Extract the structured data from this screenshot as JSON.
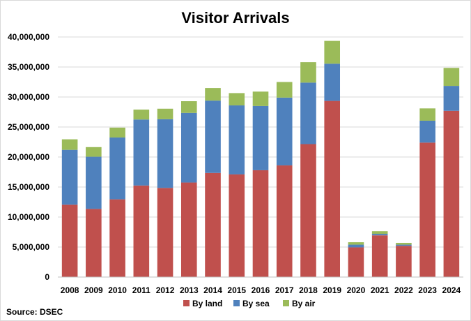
{
  "chart_data": {
    "type": "bar",
    "stacked": true,
    "title": "Visitor Arrivals",
    "source": "Source: DSEC",
    "xlabel": "",
    "ylabel": "",
    "ylim": [
      0,
      40000000
    ],
    "yticks": [
      0,
      5000000,
      10000000,
      15000000,
      20000000,
      25000000,
      30000000,
      35000000,
      40000000
    ],
    "ytick_labels": [
      "0",
      "5,000,000",
      "10,000,000",
      "15,000,000",
      "20,000,000",
      "25,000,000",
      "30,000,000",
      "35,000,000",
      "40,000,000"
    ],
    "grid": true,
    "legend_position": "bottom",
    "categories": [
      "2008",
      "2009",
      "2010",
      "2011",
      "2012",
      "2013",
      "2014",
      "2015",
      "2016",
      "2017",
      "2018",
      "2019",
      "2020",
      "2021",
      "2022",
      "2023",
      "2024"
    ],
    "series": [
      {
        "name": "By land",
        "color": "#c0504d",
        "values": [
          12050000,
          11350000,
          12950000,
          15250000,
          14850000,
          15750000,
          17350000,
          17100000,
          17800000,
          18600000,
          22150000,
          29350000,
          4950000,
          6950000,
          5200000,
          22400000,
          27700000
        ]
      },
      {
        "name": "By sea",
        "color": "#4f81bd",
        "values": [
          9150000,
          8700000,
          10300000,
          11000000,
          11450000,
          11600000,
          12050000,
          11500000,
          10700000,
          11300000,
          10250000,
          6200000,
          450000,
          250000,
          200000,
          3650000,
          4150000
        ]
      },
      {
        "name": "By air",
        "color": "#9bbb59",
        "values": [
          1750000,
          1600000,
          1650000,
          1650000,
          1750000,
          1950000,
          2100000,
          2050000,
          2400000,
          2600000,
          3400000,
          3800000,
          400000,
          450000,
          300000,
          2050000,
          3000000
        ]
      }
    ]
  }
}
